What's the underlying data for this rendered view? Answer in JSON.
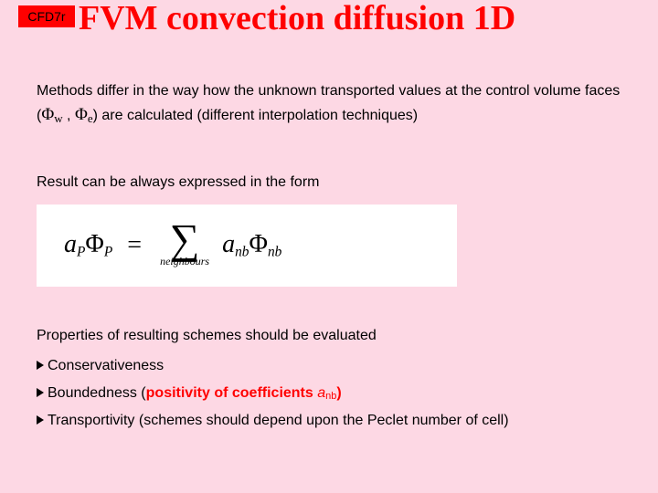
{
  "badge": "CFD7r",
  "title": "FVM convection diffusion 1D",
  "para1_a": "Methods differ in the way how the unknown transported values at the control volume faces (",
  "phi_w_sym": "Φ",
  "phi_w_sub": "w",
  "sep": " , ",
  "phi_e_sym": "Φ",
  "phi_e_sub": "e",
  "para1_b": ") are calculated (different interpolation techniques)",
  "para2": "Result can be always expressed in the form",
  "formula": {
    "aP_a": "a",
    "aP_sub": "P",
    "PhiP_phi": "Φ",
    "PhiP_sub": "P",
    "eq": " = ",
    "sigma": "∑",
    "sumlabel": "neighbours",
    "anb_a": "a",
    "anb_sub": "nb",
    "Phinb_phi": "Φ",
    "Phinb_sub": "nb"
  },
  "para3": "Properties of resulting schemes should be evaluated",
  "b1": "Conservativeness",
  "b2_a": "Boundedness (",
  "b2_hl": "positivity of coefficients ",
  "b2_a_it": "a",
  "b2_nb": "nb",
  "b2_b": ")",
  "b3": "Transportivity (schemes should depend upon the Peclet number of cell)",
  "colors": {
    "background": "#fdd8e4",
    "accent": "#ff0000",
    "text": "#000000",
    "formula_bg": "#ffffff"
  }
}
